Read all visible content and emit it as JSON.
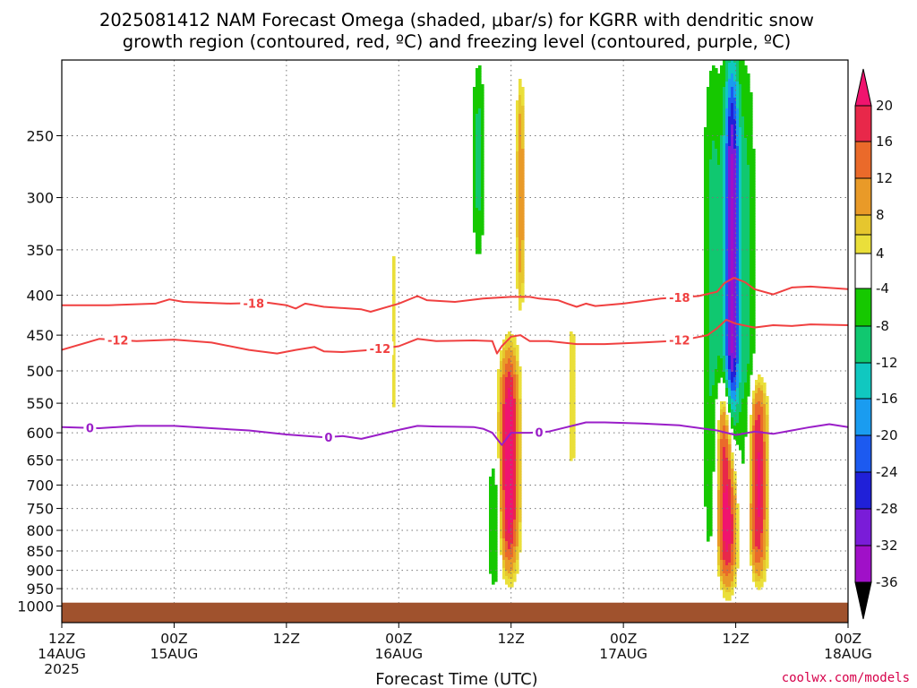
{
  "chart_data": {
    "type": "heatmap",
    "title_lines": [
      "2025081412 NAM Forecast Omega (shaded, μbar/s) for KGRR with dendritic snow",
      "growth region (contoured, red, ºC) and freezing level (contoured, purple, ºC)"
    ],
    "xlabel": "Forecast Time (UTC)",
    "credit": "coolwx.com/models",
    "x_range_hours": [
      0,
      84
    ],
    "y_scale": "log-pressure",
    "y_range_hPa": [
      200,
      1050
    ],
    "y_ticks": [
      250,
      300,
      350,
      400,
      450,
      500,
      550,
      600,
      650,
      700,
      750,
      800,
      850,
      900,
      950,
      1000
    ],
    "x_ticks": [
      {
        "hour": 0,
        "l1": "12Z",
        "l2": "14AUG",
        "l3": "2025"
      },
      {
        "hour": 12,
        "l1": "00Z",
        "l2": "15AUG",
        "l3": ""
      },
      {
        "hour": 24,
        "l1": "12Z",
        "l2": "",
        "l3": ""
      },
      {
        "hour": 36,
        "l1": "00Z",
        "l2": "16AUG",
        "l3": ""
      },
      {
        "hour": 48,
        "l1": "12Z",
        "l2": "",
        "l3": ""
      },
      {
        "hour": 60,
        "l1": "00Z",
        "l2": "17AUG",
        "l3": ""
      },
      {
        "hour": 72,
        "l1": "12Z",
        "l2": "",
        "l3": ""
      },
      {
        "hour": 84,
        "l1": "00Z",
        "l2": "18AUG",
        "l3": ""
      }
    ],
    "grid": true,
    "colorbar": {
      "labels": [
        "20",
        "16",
        "12",
        "8",
        "4",
        "-4",
        "-8",
        "-12",
        "-16",
        "-20",
        "-24",
        "-28",
        "-32",
        "-36"
      ],
      "colors": [
        "#f0146e",
        "#e8284a",
        "#ea6a2a",
        "#e99a28",
        "#e6c62e",
        "#eadf3a",
        "#ffffff",
        "#16c800",
        "#10c870",
        "#10c8c0",
        "#1a9cf0",
        "#1c5af0",
        "#2020d8",
        "#7a1cd8",
        "#a010c8",
        "#a0a0a0"
      ]
    },
    "contours": [
      {
        "name": "-18",
        "color": "#f04040",
        "points": [
          [
            0,
            412
          ],
          [
            5,
            412
          ],
          [
            10,
            410
          ],
          [
            11.5,
            405
          ],
          [
            13,
            408
          ],
          [
            18,
            410
          ],
          [
            22,
            409
          ],
          [
            24,
            412
          ],
          [
            25,
            416
          ],
          [
            26,
            410
          ],
          [
            28,
            414
          ],
          [
            32,
            417
          ],
          [
            33,
            420
          ],
          [
            36,
            410
          ],
          [
            38,
            401
          ],
          [
            39,
            406
          ],
          [
            42,
            408
          ],
          [
            45,
            404
          ],
          [
            48,
            402
          ],
          [
            50,
            402
          ],
          [
            51,
            404
          ],
          [
            53,
            406
          ],
          [
            54,
            410
          ],
          [
            55,
            414
          ],
          [
            56,
            410
          ],
          [
            57,
            413
          ],
          [
            60,
            410
          ],
          [
            62,
            407
          ],
          [
            64,
            404
          ],
          [
            68,
            401
          ],
          [
            70,
            396
          ],
          [
            70.8,
            386
          ],
          [
            71.8,
            380
          ],
          [
            73,
            385
          ],
          [
            74,
            393
          ],
          [
            76,
            399
          ],
          [
            78,
            391
          ],
          [
            80,
            390
          ],
          [
            84,
            393
          ]
        ],
        "labels": [
          {
            "hour": 20.5,
            "text": "-18"
          },
          {
            "hour": 66,
            "text": "-18"
          }
        ]
      },
      {
        "name": "-12",
        "color": "#f04040",
        "points": [
          [
            0,
            470
          ],
          [
            4,
            455
          ],
          [
            8,
            458
          ],
          [
            12,
            456
          ],
          [
            16,
            460
          ],
          [
            20,
            470
          ],
          [
            23,
            475
          ],
          [
            25,
            470
          ],
          [
            27,
            466
          ],
          [
            28,
            472
          ],
          [
            30,
            473
          ],
          [
            33,
            470
          ],
          [
            36,
            465
          ],
          [
            38,
            455
          ],
          [
            40,
            458
          ],
          [
            44,
            457
          ],
          [
            46,
            458
          ],
          [
            46.5,
            475
          ],
          [
            47,
            465
          ],
          [
            48,
            452
          ],
          [
            49,
            450
          ],
          [
            50,
            458
          ],
          [
            52,
            458
          ],
          [
            55,
            462
          ],
          [
            58,
            462
          ],
          [
            62,
            460
          ],
          [
            65,
            458
          ],
          [
            67,
            455
          ],
          [
            69,
            450
          ],
          [
            70,
            441
          ],
          [
            71,
            430
          ],
          [
            72,
            435
          ],
          [
            74,
            440
          ],
          [
            76,
            437
          ],
          [
            78,
            438
          ],
          [
            80,
            436
          ],
          [
            84,
            437
          ]
        ],
        "labels": [
          {
            "hour": 6,
            "text": "-12"
          },
          {
            "hour": 34,
            "text": "-12"
          },
          {
            "hour": 66,
            "text": "-12"
          }
        ]
      },
      {
        "name": "0",
        "color": "#9a1ec8",
        "points": [
          [
            0,
            590
          ],
          [
            4,
            592
          ],
          [
            8,
            588
          ],
          [
            12,
            588
          ],
          [
            16,
            592
          ],
          [
            20,
            596
          ],
          [
            24,
            603
          ],
          [
            28,
            608
          ],
          [
            30,
            606
          ],
          [
            32,
            611
          ],
          [
            36,
            595
          ],
          [
            38,
            588
          ],
          [
            40,
            589
          ],
          [
            44,
            590
          ],
          [
            45,
            593
          ],
          [
            46,
            600
          ],
          [
            47,
            622
          ],
          [
            48,
            600
          ],
          [
            50,
            600
          ],
          [
            52,
            598
          ],
          [
            54,
            590
          ],
          [
            56,
            582
          ],
          [
            58,
            582
          ],
          [
            62,
            584
          ],
          [
            66,
            587
          ],
          [
            70,
            596
          ],
          [
            72,
            604
          ],
          [
            74,
            598
          ],
          [
            76,
            602
          ],
          [
            78,
            596
          ],
          [
            80,
            590
          ],
          [
            82,
            585
          ],
          [
            84,
            590
          ]
        ],
        "labels": [
          {
            "hour": 3,
            "text": "0"
          },
          {
            "hour": 28.5,
            "text": "0"
          },
          {
            "hour": 51,
            "text": "0"
          }
        ]
      }
    ],
    "omega_features": [
      {
        "hour": 47.8,
        "p_top": 470,
        "p_bot": 900,
        "hw": 1.0,
        "peak": 24
      },
      {
        "hour": 71.0,
        "p_top": 520,
        "p_bot": 940,
        "hw": 1.1,
        "peak": 26
      },
      {
        "hour": 74.3,
        "p_top": 520,
        "p_bot": 920,
        "hw": 1.0,
        "peak": 22
      },
      {
        "hour": 71.6,
        "p_top": 200,
        "p_bot": 650,
        "hw": 0.8,
        "peak": -34
      },
      {
        "hour": 49.0,
        "p_top": 210,
        "p_bot": 420,
        "hw": 0.5,
        "peak": 10
      },
      {
        "hour": 44.5,
        "p_top": 200,
        "p_bot": 360,
        "hw": 0.6,
        "peak": -9
      },
      {
        "hour": 69.6,
        "p_top": 200,
        "p_bot": 960,
        "hw": 1.1,
        "peak": -10
      },
      {
        "hour": 73.2,
        "p_top": 200,
        "p_bot": 950,
        "hw": 0.9,
        "peak": -9
      },
      {
        "hour": 54.5,
        "p_top": 420,
        "p_bot": 690,
        "hw": 0.5,
        "peak": 6
      },
      {
        "hour": 35.5,
        "p_top": 320,
        "p_bot": 620,
        "hw": 0.3,
        "peak": 5
      },
      {
        "hour": 46.2,
        "p_top": 640,
        "p_bot": 960,
        "hw": 0.7,
        "peak": -8
      }
    ],
    "ground": {
      "p_top_hPa": 990,
      "color": "#a0522d"
    }
  }
}
